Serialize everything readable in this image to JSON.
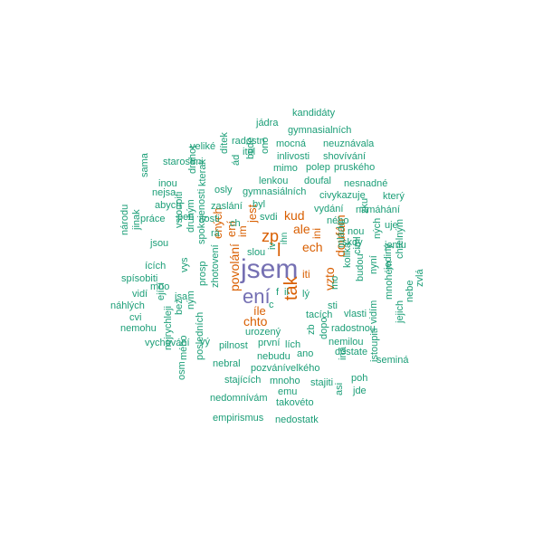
{
  "colors": {
    "background": "#ffffff",
    "teal": "#1b9e77",
    "orange": "#d95f02",
    "purple": "#7570b3"
  },
  "words": [
    {
      "text": "jsem",
      "color": "purple"
    },
    {
      "text": "ení",
      "color": "purple"
    },
    {
      "text": "tak",
      "color": "orange"
    },
    {
      "text": "zp",
      "color": "orange"
    },
    {
      "text": "kud",
      "color": "orange"
    },
    {
      "text": "ale",
      "color": "orange"
    },
    {
      "text": "ech",
      "color": "orange"
    },
    {
      "text": "l",
      "color": "orange"
    },
    {
      "text": "vzto",
      "color": "orange"
    },
    {
      "text": "doufám",
      "color": "orange"
    },
    {
      "text": "jest",
      "color": "orange"
    },
    {
      "text": "ení",
      "color": "orange"
    },
    {
      "text": "ených",
      "color": "orange"
    },
    {
      "text": "povolání",
      "color": "orange"
    },
    {
      "text": "chto",
      "color": "orange"
    },
    {
      "text": "íle",
      "color": "orange"
    },
    {
      "text": "im",
      "color": "orange"
    },
    {
      "text": "iti",
      "color": "orange"
    },
    {
      "text": "ini",
      "color": "orange"
    },
    {
      "text": "kandidáty",
      "color": "teal"
    },
    {
      "text": "jádra",
      "color": "teal"
    },
    {
      "text": "gymnasialních",
      "color": "teal"
    },
    {
      "text": "radostn",
      "color": "teal"
    },
    {
      "text": "mocná",
      "color": "teal"
    },
    {
      "text": "neuznávala",
      "color": "teal"
    },
    {
      "text": "veliké",
      "color": "teal"
    },
    {
      "text": "itel",
      "color": "teal"
    },
    {
      "text": "inlivosti",
      "color": "teal"
    },
    {
      "text": "shovívání",
      "color": "teal"
    },
    {
      "text": "starostmi",
      "color": "teal"
    },
    {
      "text": "dítek",
      "color": "teal"
    },
    {
      "text": "bude",
      "color": "teal"
    },
    {
      "text": "ono",
      "color": "teal"
    },
    {
      "text": "mimo",
      "color": "teal"
    },
    {
      "text": "polep",
      "color": "teal"
    },
    {
      "text": "pruského",
      "color": "teal"
    },
    {
      "text": "ád",
      "color": "teal"
    },
    {
      "text": "sama",
      "color": "teal"
    },
    {
      "text": "inou",
      "color": "teal"
    },
    {
      "text": "drahot",
      "color": "teal"
    },
    {
      "text": "lenkou",
      "color": "teal"
    },
    {
      "text": "doufal",
      "color": "teal"
    },
    {
      "text": "nesnadné",
      "color": "teal"
    },
    {
      "text": "nejsa",
      "color": "teal"
    },
    {
      "text": "osly",
      "color": "teal"
    },
    {
      "text": "gymnasiálních",
      "color": "teal"
    },
    {
      "text": "civykazuje",
      "color": "teal"
    },
    {
      "text": "který",
      "color": "teal"
    },
    {
      "text": "abych",
      "color": "teal"
    },
    {
      "text": "kterak",
      "color": "teal"
    },
    {
      "text": "zaslání",
      "color": "teal"
    },
    {
      "text": "byl",
      "color": "teal"
    },
    {
      "text": "vydání",
      "color": "teal"
    },
    {
      "text": "namáhání",
      "color": "teal"
    },
    {
      "text": "práce",
      "color": "teal"
    },
    {
      "text": "pen",
      "color": "teal"
    },
    {
      "text": "itosti",
      "color": "teal"
    },
    {
      "text": "svdi",
      "color": "teal"
    },
    {
      "text": "ch",
      "color": "teal"
    },
    {
      "text": "ného",
      "color": "teal"
    },
    {
      "text": "zku",
      "color": "teal"
    },
    {
      "text": "uje",
      "color": "teal"
    },
    {
      "text": "jinak",
      "color": "teal"
    },
    {
      "text": "vstoupiti",
      "color": "teal"
    },
    {
      "text": "rá",
      "color": "teal"
    },
    {
      "text": "nou",
      "color": "teal"
    },
    {
      "text": "slou",
      "color": "teal"
    },
    {
      "text": "skdy",
      "color": "teal"
    },
    {
      "text": "národu",
      "color": "teal"
    },
    {
      "text": "jsou",
      "color": "teal"
    },
    {
      "text": "druhým",
      "color": "teal"
    },
    {
      "text": "jemu",
      "color": "teal"
    },
    {
      "text": "ících",
      "color": "teal"
    },
    {
      "text": "spokojenosti",
      "color": "teal"
    },
    {
      "text": "ných",
      "color": "teal"
    },
    {
      "text": "spísobiti",
      "color": "teal"
    },
    {
      "text": "mládé",
      "color": "teal"
    },
    {
      "text": "vys",
      "color": "teal"
    },
    {
      "text": "ciml",
      "color": "teal"
    },
    {
      "text": "jediný",
      "color": "teal"
    },
    {
      "text": "mno",
      "color": "teal"
    },
    {
      "text": "kolika",
      "color": "teal"
    },
    {
      "text": "nyní",
      "color": "teal"
    },
    {
      "text": "vidí",
      "color": "teal"
    },
    {
      "text": "jsa",
      "color": "teal"
    },
    {
      "text": "chtelným",
      "color": "teal"
    },
    {
      "text": "budou",
      "color": "teal"
    },
    {
      "text": "zvlá",
      "color": "teal"
    },
    {
      "text": "náhlých",
      "color": "teal"
    },
    {
      "text": "ející",
      "color": "teal"
    },
    {
      "text": "prosp",
      "color": "teal"
    },
    {
      "text": "zhotovení",
      "color": "teal"
    },
    {
      "text": "lý",
      "color": "teal"
    },
    {
      "text": "sti",
      "color": "teal"
    },
    {
      "text": "mo",
      "color": "teal"
    },
    {
      "text": "cvi",
      "color": "teal"
    },
    {
      "text": "nebe",
      "color": "teal"
    },
    {
      "text": "bez",
      "color": "teal"
    },
    {
      "text": "ným",
      "color": "teal"
    },
    {
      "text": "vlasti",
      "color": "teal"
    },
    {
      "text": "tacích",
      "color": "teal"
    },
    {
      "text": "mnohém",
      "color": "teal"
    },
    {
      "text": "nemohu",
      "color": "teal"
    },
    {
      "text": "radostnou",
      "color": "teal"
    },
    {
      "text": "vidím",
      "color": "teal"
    },
    {
      "text": "jejich",
      "color": "teal"
    },
    {
      "text": "vychování",
      "color": "teal"
    },
    {
      "text": "vý",
      "color": "teal"
    },
    {
      "text": "pilnost",
      "color": "teal"
    },
    {
      "text": "urozený",
      "color": "teal"
    },
    {
      "text": "první",
      "color": "teal"
    },
    {
      "text": "lích",
      "color": "teal"
    },
    {
      "text": "nemilou",
      "color": "teal"
    },
    {
      "text": "zb",
      "color": "teal"
    },
    {
      "text": "dostate",
      "color": "teal"
    },
    {
      "text": "nejrychleji",
      "color": "teal"
    },
    {
      "text": "mého",
      "color": "teal"
    },
    {
      "text": "osm",
      "color": "teal"
    },
    {
      "text": "ano",
      "color": "teal"
    },
    {
      "text": "dopo",
      "color": "teal"
    },
    {
      "text": "nebral",
      "color": "teal"
    },
    {
      "text": "nebudu",
      "color": "teal"
    },
    {
      "text": "pozvánívelkého",
      "color": "teal"
    },
    {
      "text": "iná",
      "color": "teal"
    },
    {
      "text": "seminá",
      "color": "teal"
    },
    {
      "text": "posledních",
      "color": "teal"
    },
    {
      "text": "stajících",
      "color": "teal"
    },
    {
      "text": "mnoho",
      "color": "teal"
    },
    {
      "text": "stajiti",
      "color": "teal"
    },
    {
      "text": "poh",
      "color": "teal"
    },
    {
      "text": "istoupiti",
      "color": "teal"
    },
    {
      "text": "emu",
      "color": "teal"
    },
    {
      "text": "jde",
      "color": "teal"
    },
    {
      "text": "nedomnívám",
      "color": "teal"
    },
    {
      "text": "takovéto",
      "color": "teal"
    },
    {
      "text": "asi",
      "color": "teal"
    },
    {
      "text": "empirismus",
      "color": "teal"
    },
    {
      "text": "nedostatk",
      "color": "teal"
    },
    {
      "text": "f",
      "color": "teal"
    },
    {
      "text": "ii",
      "color": "teal"
    },
    {
      "text": "c",
      "color": "teal"
    },
    {
      "text": "iv",
      "color": "teal"
    },
    {
      "text": "ihn",
      "color": "teal"
    }
  ]
}
